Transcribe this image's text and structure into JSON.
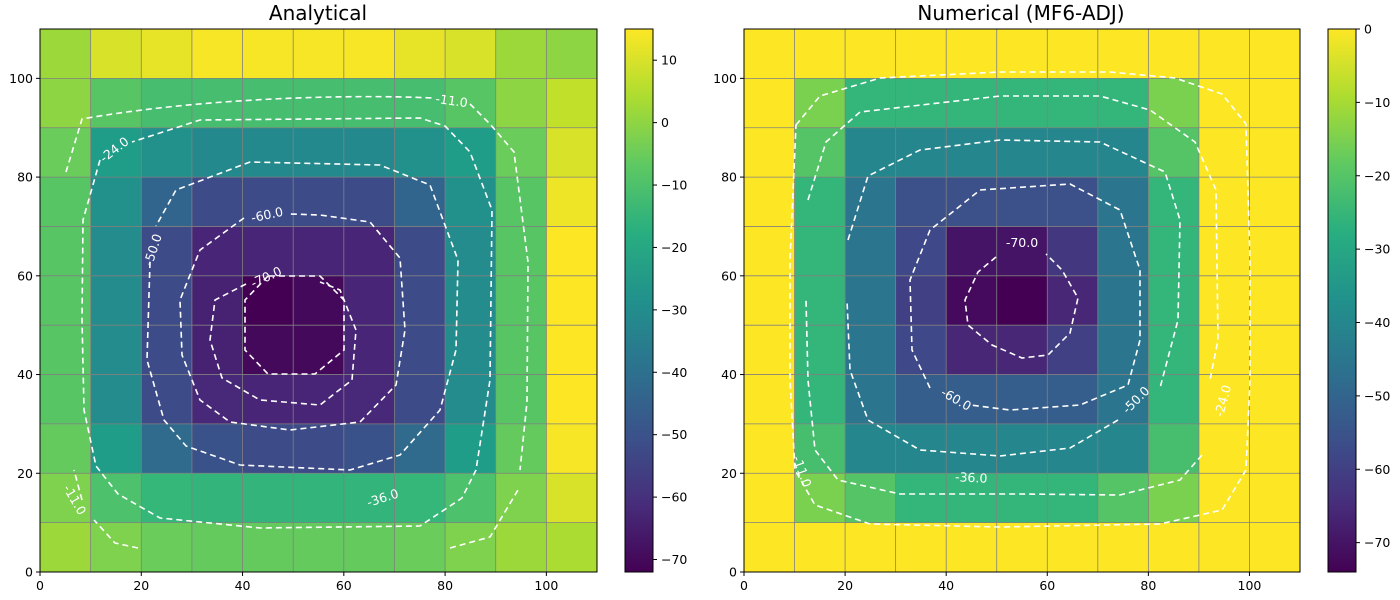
{
  "chart_data": [
    {
      "type": "heatmap",
      "title": "Analytical",
      "xlabel": "",
      "ylabel": "",
      "xlim": [
        0,
        110
      ],
      "ylim": [
        0,
        110
      ],
      "xticks": [
        "0",
        "20",
        "40",
        "60",
        "80",
        "100"
      ],
      "yticks": [
        "0",
        "20",
        "40",
        "60",
        "80",
        "100"
      ],
      "cell_size": 10,
      "grid": true,
      "colormap": "viridis",
      "colorbar": {
        "min": -72,
        "max": 15,
        "ticks": [
          10,
          0,
          -10,
          -20,
          -30,
          -40,
          -50,
          -60,
          -70
        ],
        "tick_labels": [
          "10",
          "0",
          "−10",
          "−20",
          "−30",
          "−40",
          "−50",
          "−60",
          "−70"
        ]
      },
      "values_top_to_bottom": [
        [
          2,
          10,
          12,
          14,
          14,
          14,
          14,
          12,
          10,
          2,
          0
        ],
        [
          0,
          -8,
          -11,
          -11,
          -11,
          -11,
          -11,
          -11,
          -8,
          0,
          7
        ],
        [
          -5,
          -24,
          -28,
          -31,
          -31,
          -31,
          -31,
          -28,
          -24,
          -5,
          10
        ],
        [
          -8,
          -28,
          -44,
          -52,
          -52,
          -52,
          -52,
          -44,
          -28,
          -8,
          13
        ],
        [
          -8,
          -30,
          -52,
          -63,
          -63,
          -63,
          -63,
          -52,
          -30,
          -8,
          15
        ],
        [
          -8,
          -30,
          -52,
          -64,
          -72,
          -70,
          -63,
          -52,
          -30,
          -8,
          15
        ],
        [
          -8,
          -30,
          -52,
          -64,
          -70,
          -70,
          -63,
          -52,
          -30,
          -8,
          15
        ],
        [
          -8,
          -30,
          -52,
          -62,
          -63,
          -63,
          -62,
          -52,
          -30,
          -8,
          15
        ],
        [
          -6,
          -24,
          -42,
          -50,
          -52,
          -52,
          -50,
          -42,
          -24,
          -6,
          14
        ],
        [
          -2,
          -10,
          -14,
          -15,
          -15,
          -15,
          -15,
          -14,
          -10,
          -2,
          10
        ],
        [
          2,
          -2,
          -5,
          -6,
          -6,
          -6,
          -6,
          -5,
          -2,
          2,
          4
        ]
      ],
      "contour_labels": [
        "-11.0",
        "-24.0",
        "-50.0",
        "-60.0",
        "-70.0",
        "-36.0",
        "-11.0"
      ]
    },
    {
      "type": "heatmap",
      "title": "Numerical (MF6-ADJ)",
      "xlabel": "",
      "ylabel": "",
      "xlim": [
        0,
        110
      ],
      "ylim": [
        0,
        110
      ],
      "xticks": [
        "0",
        "20",
        "40",
        "60",
        "80",
        "100"
      ],
      "yticks": [
        "0",
        "20",
        "40",
        "60",
        "80",
        "100"
      ],
      "cell_size": 10,
      "grid": true,
      "colormap": "viridis",
      "colorbar": {
        "min": -74,
        "max": 0,
        "ticks": [
          0,
          -10,
          -20,
          -30,
          -40,
          -50,
          -60,
          -70
        ],
        "tick_labels": [
          "0",
          "−10",
          "−20",
          "−30",
          "−40",
          "−50",
          "−60",
          "−70"
        ]
      },
      "values_top_to_bottom": [
        [
          0,
          0,
          0,
          0,
          0,
          0,
          0,
          0,
          0,
          0,
          0
        ],
        [
          0,
          -15,
          -25,
          -25,
          -25,
          -25,
          -25,
          -25,
          -15,
          0,
          0
        ],
        [
          0,
          -20,
          -40,
          -40,
          -40,
          -40,
          -40,
          -40,
          -20,
          0,
          0
        ],
        [
          0,
          -25,
          -45,
          -56,
          -56,
          -56,
          -56,
          -45,
          -25,
          0,
          0
        ],
        [
          0,
          -25,
          -45,
          -58,
          -70,
          -70,
          -62,
          -45,
          -25,
          0,
          0
        ],
        [
          0,
          -25,
          -45,
          -60,
          -72,
          -74,
          -66,
          -45,
          -25,
          0,
          0
        ],
        [
          0,
          -25,
          -45,
          -58,
          -66,
          -66,
          -60,
          -45,
          -25,
          0,
          0
        ],
        [
          0,
          -25,
          -45,
          -52,
          -52,
          -52,
          -52,
          -45,
          -25,
          0,
          0
        ],
        [
          0,
          -22,
          -40,
          -40,
          -40,
          -40,
          -40,
          -40,
          -22,
          0,
          0
        ],
        [
          0,
          -15,
          -20,
          -25,
          -25,
          -25,
          -25,
          -20,
          -15,
          0,
          0
        ],
        [
          0,
          0,
          0,
          0,
          0,
          0,
          0,
          0,
          0,
          0,
          0
        ]
      ],
      "contour_labels": [
        "-70.0",
        "-60.0",
        "-50.0",
        "-24.0",
        "-36.0",
        "-11.0"
      ]
    }
  ]
}
